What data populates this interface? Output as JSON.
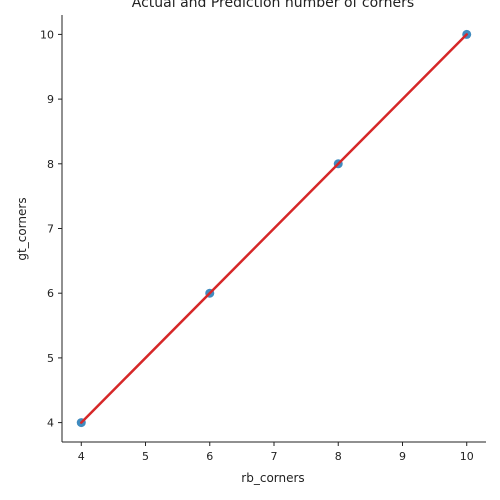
{
  "chart_data": {
    "type": "scatter",
    "title": "Actual and Prediction number of corners",
    "xlabel": "rb_corners",
    "ylabel": "gt_corners",
    "xlim": [
      3.7,
      10.3
    ],
    "ylim": [
      3.7,
      10.3
    ],
    "xticks": [
      "4",
      "5",
      "6",
      "7",
      "8",
      "9",
      "10"
    ],
    "yticks": [
      "4",
      "5",
      "6",
      "7",
      "8",
      "9",
      "10"
    ],
    "grid": false,
    "points": [
      {
        "x": 4,
        "y": 4
      },
      {
        "x": 6,
        "y": 6
      },
      {
        "x": 8,
        "y": 8
      },
      {
        "x": 10,
        "y": 10
      }
    ],
    "fit_line": {
      "x": [
        4,
        10
      ],
      "y": [
        4,
        10
      ]
    },
    "colors": {
      "points": "#1f77b4",
      "fit_line": "#d62728",
      "axes": "#222222"
    }
  }
}
